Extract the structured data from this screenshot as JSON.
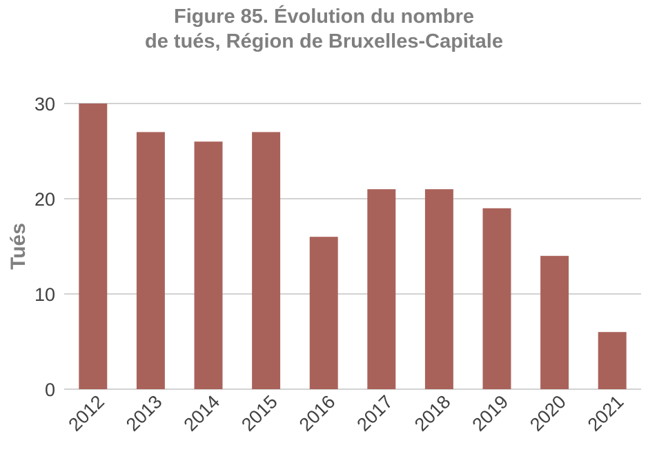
{
  "chart_data": {
    "type": "bar",
    "title_line1": "Figure 85. Évolution du nombre",
    "title_line2": "de tués, Région de Bruxelles-Capitale",
    "xlabel": "",
    "ylabel": "Tués",
    "categories": [
      "2012",
      "2013",
      "2014",
      "2015",
      "2016",
      "2017",
      "2018",
      "2019",
      "2020",
      "2021"
    ],
    "values": [
      30,
      27,
      26,
      27,
      16,
      21,
      21,
      19,
      14,
      6
    ],
    "ylim": [
      0,
      30
    ],
    "yticks": [
      0,
      10,
      20,
      30
    ],
    "grid": true,
    "legend": "none",
    "bar_color": "#a9625a",
    "grid_color": "#a6a6a6"
  }
}
